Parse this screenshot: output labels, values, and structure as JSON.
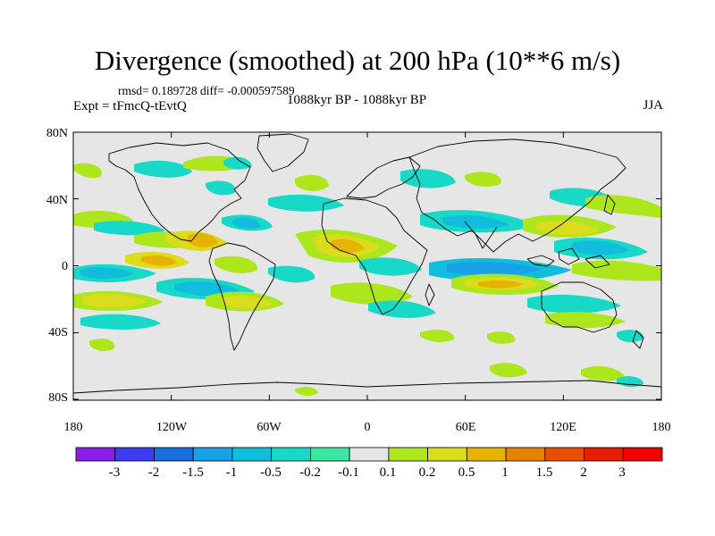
{
  "title": "Divergence (smoothed) at 200 hPa (10**6 m/s)",
  "stats": "rmsd= 0.189728 diff= -0.000597589",
  "experiment": "Expt = tFmcQ-tEvtQ",
  "period": "1088kyr BP - 1088kyr BP",
  "season": "JJA",
  "axes": {
    "lat_ticks": [
      "80N",
      "40N",
      "0",
      "40S",
      "80S"
    ],
    "lon_ticks": [
      "180",
      "120W",
      "60W",
      "0",
      "60E",
      "120E",
      "180"
    ]
  },
  "colorbar": {
    "labels": [
      "-3",
      "-2",
      "-1.5",
      "-1",
      "-0.5",
      "-0.2",
      "-0.1",
      "0.1",
      "0.2",
      "0.5",
      "1",
      "1.5",
      "2",
      "3"
    ],
    "colors": [
      "#8a1ee6",
      "#3c3cf0",
      "#1a6ee0",
      "#1aa0e6",
      "#10bedc",
      "#18d8c8",
      "#3ce6a0",
      "#e6e6e6",
      "#aee61e",
      "#dcdc1e",
      "#e6b400",
      "#e68200",
      "#e65000",
      "#e61e00",
      "#f00000"
    ]
  },
  "colors": {
    "map_background": "#e6e6e6",
    "coastline": "#000000"
  }
}
